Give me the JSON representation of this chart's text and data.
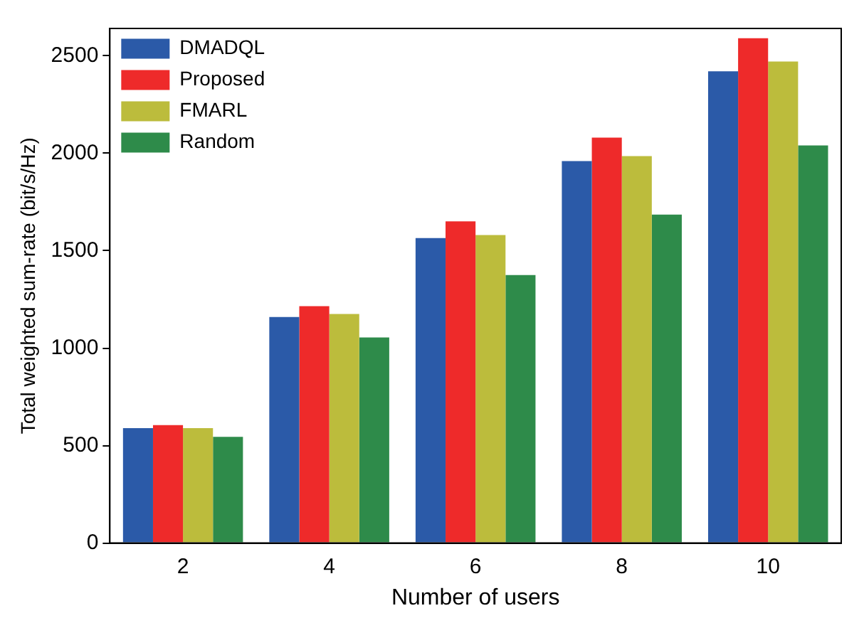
{
  "chart_data": {
    "type": "bar",
    "xlabel": "Number of users",
    "ylabel": "Total weighted sum-rate (bit/s/Hz)",
    "categories": [
      "2",
      "4",
      "6",
      "8",
      "10"
    ],
    "series": [
      {
        "name": "DMADQL",
        "color": "#2b5aa8",
        "values": [
          590,
          1160,
          1565,
          1960,
          2420
        ]
      },
      {
        "name": "Proposed",
        "color": "#ee2a2a",
        "values": [
          605,
          1215,
          1650,
          2080,
          2590
        ]
      },
      {
        "name": "FMARL",
        "color": "#bcbc3c",
        "values": [
          590,
          1175,
          1580,
          1985,
          2470
        ]
      },
      {
        "name": "Random",
        "color": "#2e8b4a",
        "values": [
          545,
          1055,
          1375,
          1685,
          2040
        ]
      }
    ],
    "ylim": [
      0,
      2640
    ],
    "yticks": [
      0,
      500,
      1000,
      1500,
      2000,
      2500
    ],
    "grid": false,
    "legend": "top left"
  }
}
